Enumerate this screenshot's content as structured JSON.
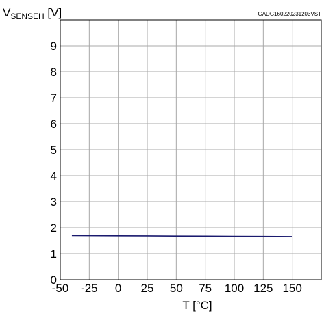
{
  "chart_data": {
    "type": "line",
    "ylabel_main": "V",
    "ylabel_sub": "SENSEH",
    "ylabel_unit": " [V]",
    "xlabel": "T [°C]",
    "figure_code": "GADG160220231203VST",
    "xlim": [
      -50,
      175
    ],
    "ylim": [
      0,
      10
    ],
    "xticks": [
      -50,
      -25,
      0,
      25,
      50,
      75,
      100,
      125,
      150
    ],
    "yticks": [
      0,
      1,
      2,
      3,
      4,
      5,
      6,
      7,
      8,
      9
    ],
    "grid": true,
    "series": [
      {
        "color": "#1a1a6e",
        "x": [
          -40,
          0,
          25,
          50,
          75,
          100,
          125,
          150
        ],
        "y": [
          1.7,
          1.69,
          1.685,
          1.68,
          1.675,
          1.67,
          1.665,
          1.66
        ]
      }
    ]
  }
}
